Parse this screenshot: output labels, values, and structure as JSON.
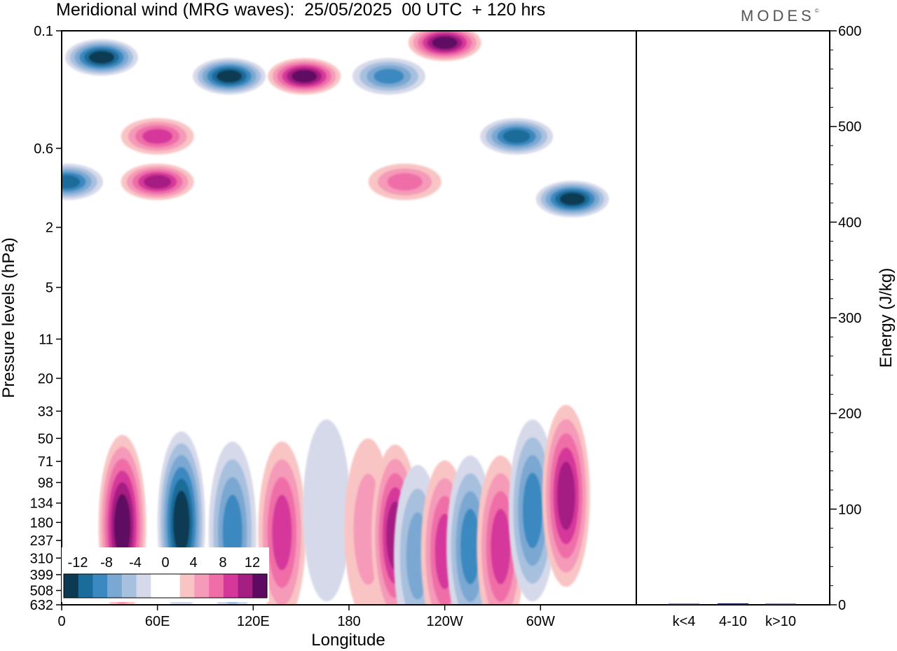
{
  "header": {
    "title": "Meridional wind (MRG waves):  25/05/2025  00 UTC  + 120 hrs",
    "brand": "MODES"
  },
  "colors": {
    "neg6": "#0c3a52",
    "neg5": "#1a6c9a",
    "neg4": "#3b89c0",
    "neg3": "#7aa8d2",
    "neg2": "#a7c0de",
    "neg1": "#d6d9ea",
    "zero": "#ffffff",
    "pos1": "#f9c4c4",
    "pos2": "#f59ab8",
    "pos3": "#ef6ea8",
    "pos4": "#d5389a",
    "pos5": "#a51f82",
    "pos6": "#5e0a62",
    "bar": "#1b1b5a"
  },
  "chart_data": [
    {
      "type": "heatmap",
      "title": "Meridional wind (MRG waves):  25/05/2025  00 UTC  + 120 hrs",
      "xlabel": "Longitude",
      "ylabel": "Pressure levels (hPa)",
      "x_ticks": [
        "0",
        "60E",
        "120E",
        "180",
        "120W",
        "60W"
      ],
      "y_ticks": [
        "0.1",
        "0.6",
        "2",
        "5",
        "11",
        "20",
        "33",
        "50",
        "71",
        "98",
        "134",
        "180",
        "237",
        "310",
        "399",
        "508",
        "632"
      ],
      "colorbar": {
        "labels": [
          "-12",
          "-8",
          "-4",
          "0",
          "4",
          "8",
          "12"
        ],
        "levels": [
          -14,
          -12,
          -10,
          -8,
          -6,
          -4,
          -2,
          2,
          4,
          6,
          8,
          10,
          12,
          14
        ]
      },
      "features": [
        {
          "lon": 38,
          "p": 190,
          "value": 12
        },
        {
          "lon": 75,
          "p": 180,
          "value": -12
        },
        {
          "lon": 107,
          "p": 210,
          "value": -8
        },
        {
          "lon": 138,
          "p": 210,
          "value": 8
        },
        {
          "lon": 166,
          "p": 150,
          "value": -2
        },
        {
          "lon": 192,
          "p": 200,
          "value": 4
        },
        {
          "lon": 209,
          "p": 220,
          "value": 10
        },
        {
          "lon": 223,
          "p": 300,
          "value": -6
        },
        {
          "lon": 240,
          "p": 280,
          "value": 8
        },
        {
          "lon": 256,
          "p": 260,
          "value": -8
        },
        {
          "lon": 275,
          "p": 260,
          "value": 8
        },
        {
          "lon": 295,
          "p": 150,
          "value": -8
        },
        {
          "lon": 316,
          "p": 120,
          "value": 10
        },
        {
          "lon": 60,
          "p": 1.0,
          "value": 10
        },
        {
          "lon": 105,
          "p": 0.2,
          "value": -12
        },
        {
          "lon": 152,
          "p": 0.2,
          "value": 14
        },
        {
          "lon": 25,
          "p": 0.15,
          "value": -12
        },
        {
          "lon": 205,
          "p": 0.2,
          "value": -8
        },
        {
          "lon": 240,
          "p": 0.12,
          "value": 14
        },
        {
          "lon": 285,
          "p": 0.5,
          "value": -10
        },
        {
          "lon": 215,
          "p": 1.0,
          "value": 6
        },
        {
          "lon": 320,
          "p": 1.3,
          "value": -12
        },
        {
          "lon": 3,
          "p": 1.0,
          "value": -10
        },
        {
          "lon": 60,
          "p": 0.5,
          "value": 8
        }
      ]
    },
    {
      "type": "bar",
      "ylabel": "Energy (J/kg)",
      "categories": [
        "k<4",
        "4-10",
        "k>10"
      ],
      "values": [
        0.3,
        1.5,
        0.3
      ],
      "ylim": [
        0,
        600
      ],
      "y_ticks": [
        "0",
        "100",
        "200",
        "300",
        "400",
        "500",
        "600"
      ]
    }
  ]
}
